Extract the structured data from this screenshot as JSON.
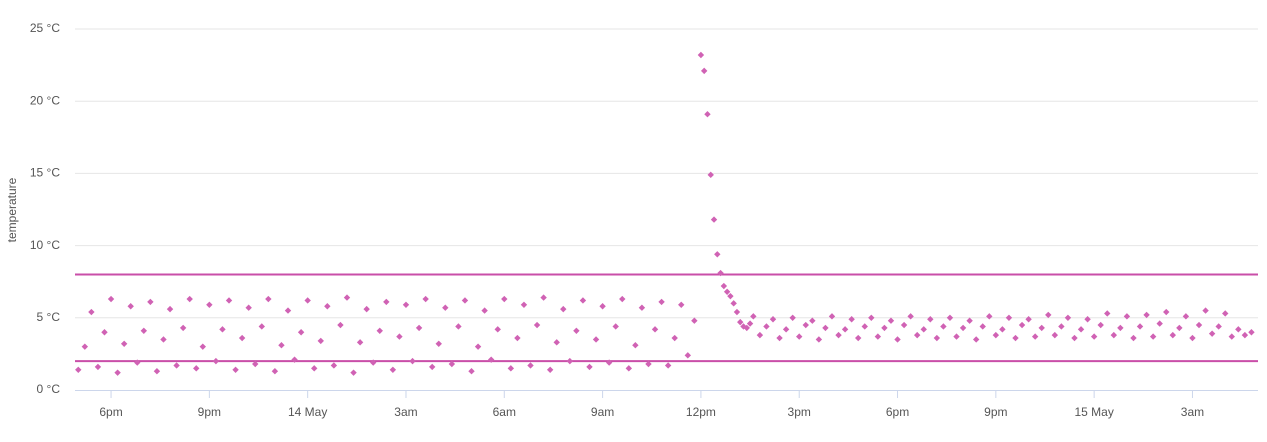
{
  "chart_data": {
    "type": "scatter",
    "y_label": "temperature",
    "color": "#d062b4",
    "reference_color": "#c94ea8",
    "grid": true,
    "ylim": [
      0,
      25
    ],
    "yticks": [
      {
        "value": 0,
        "label": "0 °C"
      },
      {
        "value": 5,
        "label": "5 °C"
      },
      {
        "value": 10,
        "label": "10 °C"
      },
      {
        "value": 15,
        "label": "15 °C"
      },
      {
        "value": 20,
        "label": "20 °C"
      },
      {
        "value": 25,
        "label": "25 °C"
      }
    ],
    "xlim": [
      16.9,
      53.0
    ],
    "xticks": [
      {
        "value": 18,
        "label": "6pm"
      },
      {
        "value": 21,
        "label": "9pm"
      },
      {
        "value": 24,
        "label": "14 May"
      },
      {
        "value": 27,
        "label": "3am"
      },
      {
        "value": 30,
        "label": "6am"
      },
      {
        "value": 33,
        "label": "9am"
      },
      {
        "value": 36,
        "label": "12pm"
      },
      {
        "value": 39,
        "label": "3pm"
      },
      {
        "value": 42,
        "label": "6pm"
      },
      {
        "value": 45,
        "label": "9pm"
      },
      {
        "value": 48,
        "label": "15 May"
      },
      {
        "value": 51,
        "label": "3am"
      }
    ],
    "reference_lines": [
      8,
      2
    ],
    "x": [
      17.0,
      17.2,
      17.4,
      17.6,
      17.8,
      18.0,
      18.2,
      18.4,
      18.6,
      18.8,
      19.0,
      19.2,
      19.4,
      19.6,
      19.8,
      20.0,
      20.2,
      20.4,
      20.6,
      20.8,
      21.0,
      21.2,
      21.4,
      21.6,
      21.8,
      22.0,
      22.2,
      22.4,
      22.6,
      22.8,
      23.0,
      23.2,
      23.4,
      23.6,
      23.8,
      24.0,
      24.2,
      24.4,
      24.6,
      24.8,
      25.0,
      25.2,
      25.4,
      25.6,
      25.8,
      26.0,
      26.2,
      26.4,
      26.6,
      26.8,
      27.0,
      27.2,
      27.4,
      27.6,
      27.8,
      28.0,
      28.2,
      28.4,
      28.6,
      28.8,
      29.0,
      29.2,
      29.4,
      29.6,
      29.8,
      30.0,
      30.2,
      30.4,
      30.6,
      30.8,
      31.0,
      31.2,
      31.4,
      31.6,
      31.8,
      32.0,
      32.2,
      32.4,
      32.6,
      32.8,
      33.0,
      33.2,
      33.4,
      33.6,
      33.8,
      34.0,
      34.2,
      34.4,
      34.6,
      34.8,
      35.0,
      35.2,
      35.4,
      35.6,
      35.8,
      36.0,
      36.1,
      36.2,
      36.3,
      36.4,
      36.5,
      36.6,
      36.7,
      36.8,
      36.9,
      37.0,
      37.1,
      37.2,
      37.3,
      37.4,
      37.5,
      37.6,
      37.8,
      38.0,
      38.2,
      38.4,
      38.6,
      38.8,
      39.0,
      39.2,
      39.4,
      39.6,
      39.8,
      40.0,
      40.2,
      40.4,
      40.6,
      40.8,
      41.0,
      41.2,
      41.4,
      41.6,
      41.8,
      42.0,
      42.2,
      42.4,
      42.6,
      42.8,
      43.0,
      43.2,
      43.4,
      43.6,
      43.8,
      44.0,
      44.2,
      44.4,
      44.6,
      44.8,
      45.0,
      45.2,
      45.4,
      45.6,
      45.8,
      46.0,
      46.2,
      46.4,
      46.6,
      46.8,
      47.0,
      47.2,
      47.4,
      47.6,
      47.8,
      48.0,
      48.2,
      48.4,
      48.6,
      48.8,
      49.0,
      49.2,
      49.4,
      49.6,
      49.8,
      50.0,
      50.2,
      50.4,
      50.6,
      50.8,
      51.0,
      51.2,
      51.4,
      51.6,
      51.8,
      52.0,
      52.2,
      52.4,
      52.6,
      52.8
    ],
    "values": [
      1.4,
      3.0,
      5.4,
      1.6,
      4.0,
      6.3,
      1.2,
      3.2,
      5.8,
      1.9,
      4.1,
      6.1,
      1.3,
      3.5,
      5.6,
      1.7,
      4.3,
      6.3,
      1.5,
      3.0,
      5.9,
      2.0,
      4.2,
      6.2,
      1.4,
      3.6,
      5.7,
      1.8,
      4.4,
      6.3,
      1.3,
      3.1,
      5.5,
      2.1,
      4.0,
      6.2,
      1.5,
      3.4,
      5.8,
      1.7,
      4.5,
      6.4,
      1.2,
      3.3,
      5.6,
      1.9,
      4.1,
      6.1,
      1.4,
      3.7,
      5.9,
      2.0,
      4.3,
      6.3,
      1.6,
      3.2,
      5.7,
      1.8,
      4.4,
      6.2,
      1.3,
      3.0,
      5.5,
      2.1,
      4.2,
      6.3,
      1.5,
      3.6,
      5.9,
      1.7,
      4.5,
      6.4,
      1.4,
      3.3,
      5.6,
      2.0,
      4.1,
      6.2,
      1.6,
      3.5,
      5.8,
      1.9,
      4.4,
      6.3,
      1.5,
      3.1,
      5.7,
      1.8,
      4.2,
      6.1,
      1.7,
      3.6,
      5.9,
      2.4,
      4.8,
      23.2,
      22.1,
      19.1,
      14.9,
      11.8,
      9.4,
      8.1,
      7.2,
      6.8,
      6.5,
      6.0,
      5.4,
      4.7,
      4.4,
      4.3,
      4.6,
      5.1,
      3.8,
      4.4,
      4.9,
      3.6,
      4.2,
      5.0,
      3.7,
      4.5,
      4.8,
      3.5,
      4.3,
      5.1,
      3.8,
      4.2,
      4.9,
      3.6,
      4.4,
      5.0,
      3.7,
      4.3,
      4.8,
      3.5,
      4.5,
      5.1,
      3.8,
      4.2,
      4.9,
      3.6,
      4.4,
      5.0,
      3.7,
      4.3,
      4.8,
      3.5,
      4.4,
      5.1,
      3.8,
      4.2,
      5.0,
      3.6,
      4.5,
      4.9,
      3.7,
      4.3,
      5.2,
      3.8,
      4.4,
      5.0,
      3.6,
      4.2,
      4.9,
      3.7,
      4.5,
      5.3,
      3.8,
      4.3,
      5.1,
      3.6,
      4.4,
      5.2,
      3.7,
      4.6,
      5.4,
      3.8,
      4.3,
      5.1,
      3.6,
      4.5,
      5.5,
      3.9,
      4.4,
      5.3,
      3.7,
      4.2,
      3.8,
      4.0
    ]
  }
}
